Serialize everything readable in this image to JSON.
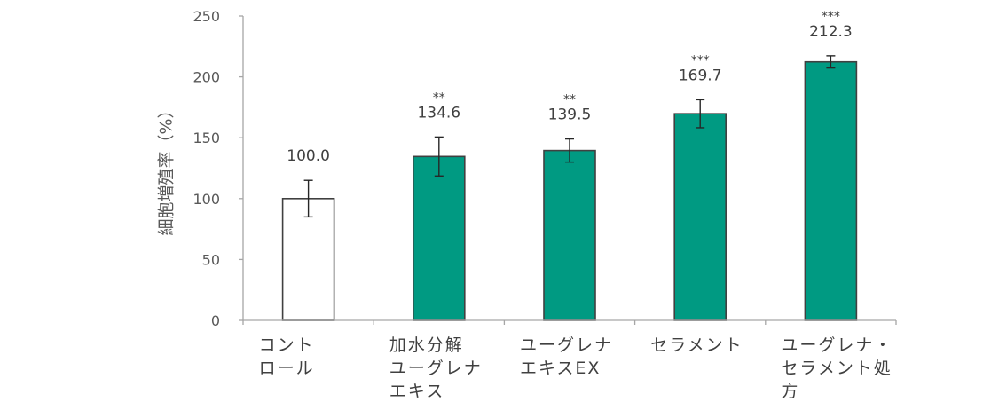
{
  "chart_data": {
    "type": "bar",
    "title": "",
    "xlabel": "",
    "ylabel": "細胞増殖率（%）",
    "ylim": [
      0,
      250
    ],
    "yticks": [
      0,
      50,
      100,
      150,
      200,
      250
    ],
    "grid": false,
    "legend": null,
    "categories": [
      [
        "コント",
        "ロール"
      ],
      [
        "加水分解",
        "ユーグレナ",
        "エキス"
      ],
      [
        "ユーグレナ",
        "エキスEX"
      ],
      [
        "セラメント"
      ],
      [
        "ユーグレナ・",
        "セラメント処",
        "方"
      ]
    ],
    "category_names": [
      "コントロール",
      "加水分解ユーグレナエキス",
      "ユーグレナエキスEX",
      "セラメント",
      "ユーグレナ・セラメント処方"
    ],
    "values": [
      100.0,
      134.6,
      139.5,
      169.7,
      212.3
    ],
    "value_labels": [
      "100.0",
      "134.6",
      "139.5",
      "169.7",
      "212.3"
    ],
    "error": [
      15,
      16,
      9.5,
      11.5,
      5
    ],
    "significance": [
      "",
      "**",
      "**",
      "***",
      "***"
    ],
    "bar_colors": [
      "#ffffff",
      "#009a82",
      "#009a82",
      "#009a82",
      "#009a82"
    ],
    "bar_edge_color": "#404040"
  }
}
